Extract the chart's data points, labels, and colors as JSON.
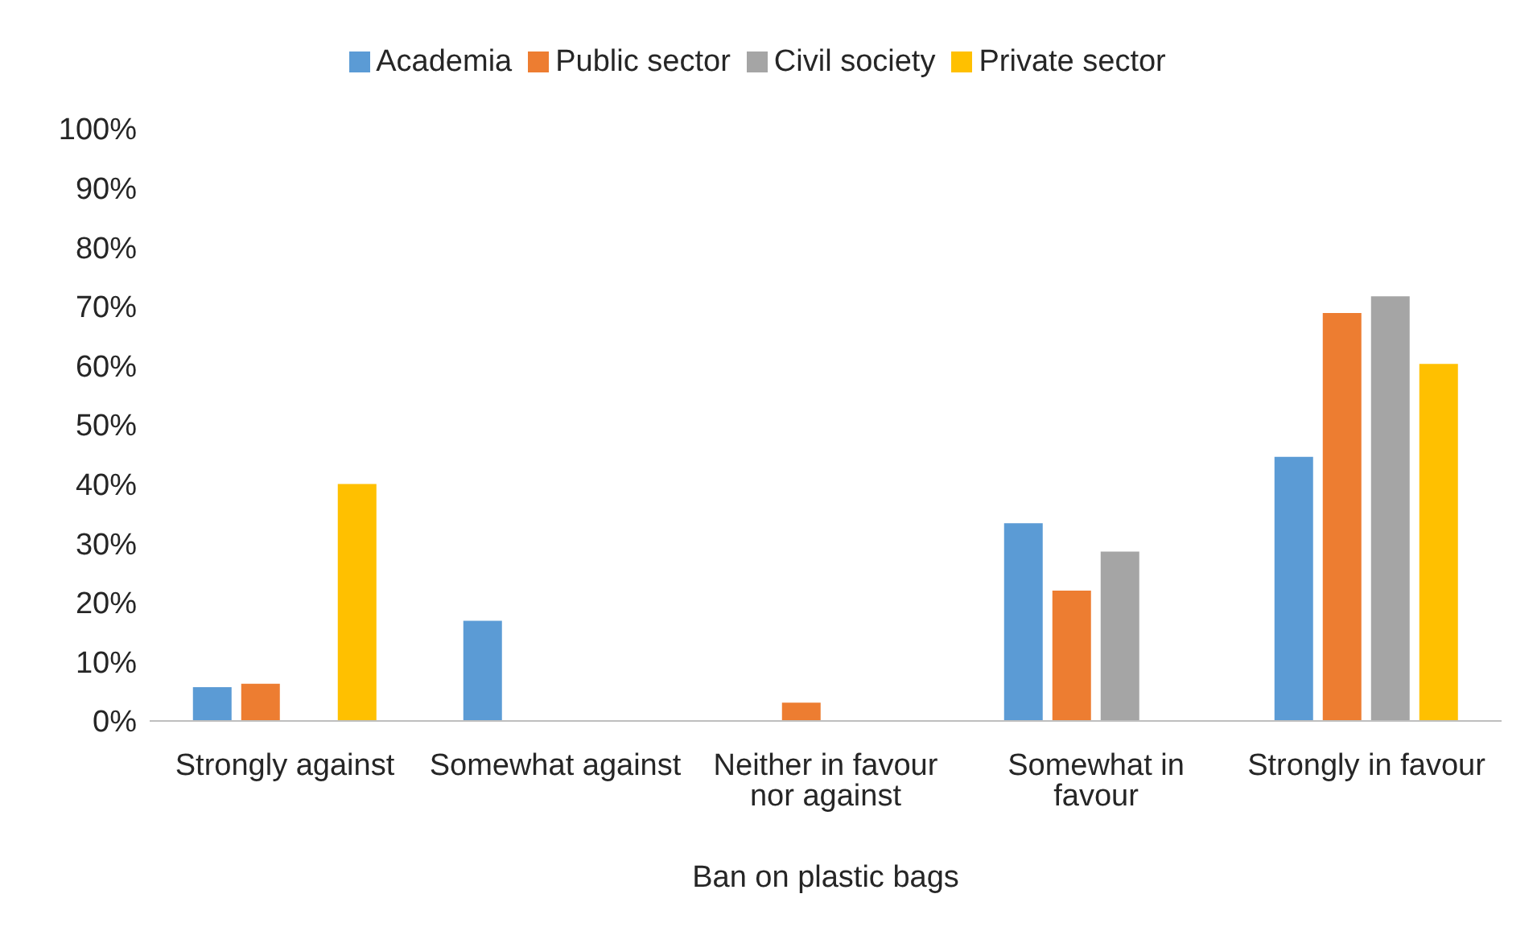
{
  "chart_data": {
    "type": "bar",
    "xlabel": "Ban on plastic bags",
    "categories": [
      "Strongly against",
      "Somewhat against",
      "Neither in favour nor against",
      "Somewhat in favour",
      "Strongly in favour"
    ],
    "series": [
      {
        "name": "Academia",
        "color": "#5b9bd5",
        "values": [
          5.7,
          16.9,
          0,
          33.4,
          44.6
        ]
      },
      {
        "name": "Public sector",
        "color": "#ed7d31",
        "values": [
          6.3,
          0,
          3.1,
          22,
          68.9
        ]
      },
      {
        "name": "Civil society",
        "color": "#a5a5a5",
        "values": [
          0,
          0,
          0,
          28.6,
          71.7
        ]
      },
      {
        "name": "Private sector",
        "color": "#ffc000",
        "values": [
          40,
          0,
          0,
          0,
          60.3
        ]
      }
    ],
    "ylim": [
      0,
      100
    ],
    "yticks": [
      {
        "value": 0,
        "label": "0%"
      },
      {
        "value": 10,
        "label": "10%"
      },
      {
        "value": 20,
        "label": "20%"
      },
      {
        "value": 30,
        "label": "30%"
      },
      {
        "value": 40,
        "label": "40%"
      },
      {
        "value": 50,
        "label": "50%"
      },
      {
        "value": 60,
        "label": "60%"
      },
      {
        "value": 70,
        "label": "70%"
      },
      {
        "value": 80,
        "label": "80%"
      },
      {
        "value": 90,
        "label": "90%"
      },
      {
        "value": 100,
        "label": "100%"
      }
    ],
    "grid": false,
    "legend": "top"
  }
}
